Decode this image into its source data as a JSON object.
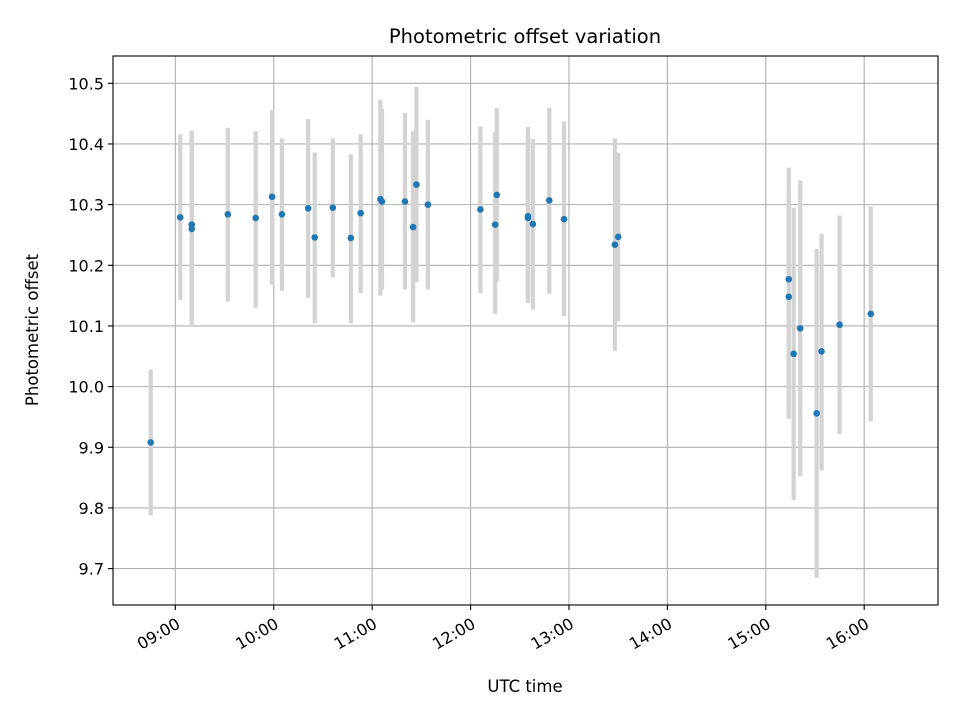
{
  "chart_data": {
    "type": "scatter",
    "title": "Photometric offset variation",
    "xlabel": "UTC time",
    "ylabel": "Photometric offset",
    "grid": true,
    "xlim": [
      "08:22",
      "16:45"
    ],
    "ylim": [
      9.64,
      10.545
    ],
    "xticks": [
      "09:00",
      "10:00",
      "11:00",
      "12:00",
      "13:00",
      "14:00",
      "15:00",
      "16:00"
    ],
    "yticks": [
      "9.7",
      "9.8",
      "9.9",
      "10.0",
      "10.1",
      "10.2",
      "10.3",
      "10.4",
      "10.5"
    ],
    "marker_color": "#1f77b4",
    "errorbar_color": "#d3d3d3",
    "points": [
      {
        "t": "08:45",
        "y": 9.908,
        "lo": 9.788,
        "hi": 10.028
      },
      {
        "t": "09:03",
        "y": 10.279,
        "lo": 10.143,
        "hi": 10.416
      },
      {
        "t": "09:10",
        "y": 10.267,
        "lo": 10.108,
        "hi": 10.422
      },
      {
        "t": "09:10",
        "y": 10.26,
        "lo": 10.1,
        "hi": 10.41
      },
      {
        "t": "09:32",
        "y": 10.284,
        "lo": 10.14,
        "hi": 10.427
      },
      {
        "t": "09:49",
        "y": 10.278,
        "lo": 10.13,
        "hi": 10.421
      },
      {
        "t": "09:59",
        "y": 10.313,
        "lo": 10.168,
        "hi": 10.456
      },
      {
        "t": "10:05",
        "y": 10.284,
        "lo": 10.158,
        "hi": 10.409
      },
      {
        "t": "10:21",
        "y": 10.294,
        "lo": 10.146,
        "hi": 10.441
      },
      {
        "t": "10:25",
        "y": 10.246,
        "lo": 10.104,
        "hi": 10.386
      },
      {
        "t": "10:36",
        "y": 10.295,
        "lo": 10.18,
        "hi": 10.409
      },
      {
        "t": "10:47",
        "y": 10.245,
        "lo": 10.104,
        "hi": 10.383
      },
      {
        "t": "10:53",
        "y": 10.286,
        "lo": 10.154,
        "hi": 10.416
      },
      {
        "t": "11:05",
        "y": 10.309,
        "lo": 10.15,
        "hi": 10.473
      },
      {
        "t": "11:06",
        "y": 10.305,
        "lo": 10.16,
        "hi": 10.458
      },
      {
        "t": "11:20",
        "y": 10.305,
        "lo": 10.16,
        "hi": 10.451
      },
      {
        "t": "11:25",
        "y": 10.263,
        "lo": 10.106,
        "hi": 10.421
      },
      {
        "t": "11:27",
        "y": 10.333,
        "lo": 10.172,
        "hi": 10.494
      },
      {
        "t": "11:34",
        "y": 10.3,
        "lo": 10.16,
        "hi": 10.44
      },
      {
        "t": "12:06",
        "y": 10.292,
        "lo": 10.154,
        "hi": 10.429
      },
      {
        "t": "12:15",
        "y": 10.267,
        "lo": 10.12,
        "hi": 10.42
      },
      {
        "t": "12:16",
        "y": 10.316,
        "lo": 10.173,
        "hi": 10.459
      },
      {
        "t": "12:35",
        "y": 10.281,
        "lo": 10.138,
        "hi": 10.428
      },
      {
        "t": "12:35",
        "y": 10.278,
        "lo": 10.138,
        "hi": 10.42
      },
      {
        "t": "12:38",
        "y": 10.268,
        "lo": 10.127,
        "hi": 10.408
      },
      {
        "t": "12:48",
        "y": 10.307,
        "lo": 10.153,
        "hi": 10.46
      },
      {
        "t": "12:57",
        "y": 10.276,
        "lo": 10.116,
        "hi": 10.437
      },
      {
        "t": "13:28",
        "y": 10.234,
        "lo": 10.059,
        "hi": 10.409
      },
      {
        "t": "13:30",
        "y": 10.247,
        "lo": 10.108,
        "hi": 10.386
      },
      {
        "t": "15:14",
        "y": 10.177,
        "lo": 9.947,
        "hi": 10.361
      },
      {
        "t": "15:14",
        "y": 10.148,
        "lo": 9.96,
        "hi": 10.33
      },
      {
        "t": "15:17",
        "y": 10.054,
        "lo": 9.813,
        "hi": 10.295
      },
      {
        "t": "15:21",
        "y": 10.096,
        "lo": 9.852,
        "hi": 10.34
      },
      {
        "t": "15:31",
        "y": 9.956,
        "lo": 9.685,
        "hi": 10.227
      },
      {
        "t": "15:34",
        "y": 10.058,
        "lo": 9.862,
        "hi": 10.252
      },
      {
        "t": "15:45",
        "y": 10.102,
        "lo": 9.922,
        "hi": 10.282
      },
      {
        "t": "16:04",
        "y": 10.12,
        "lo": 9.943,
        "hi": 10.297
      }
    ]
  }
}
